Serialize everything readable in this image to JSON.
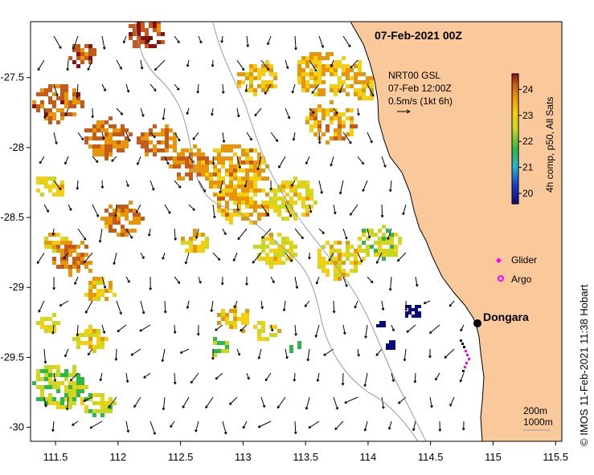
{
  "map": {
    "title": "07-Feb-2021 00Z",
    "credit": "© IMOS 11-Feb-2021 11:38 Hobart",
    "x_axis": {
      "ticks": [
        "111.5",
        "112",
        "112.5",
        "113",
        "113.5",
        "114",
        "114.5",
        "115",
        "115.5"
      ],
      "values": [
        111.5,
        112,
        112.5,
        113,
        113.5,
        114,
        114.5,
        115,
        115.5
      ],
      "range": [
        111.3,
        115.55
      ]
    },
    "y_axis": {
      "ticks": [
        "-27.5",
        "-28",
        "-28.5",
        "-29",
        "-29.5",
        "-30"
      ],
      "values": [
        -27.5,
        -28,
        -28.5,
        -29,
        -29.5,
        -30
      ],
      "range": [
        -30.1,
        -27.1
      ]
    },
    "current_legend": {
      "line1": "NRT00 GSL",
      "line2": "07-Feb 12:00Z",
      "line3": "0.5m/s (1kt 6h)"
    },
    "colorbar": {
      "label": "4h comp, p50, All Sats",
      "ticks": [
        "24",
        "23",
        "22",
        "21",
        "20"
      ],
      "values": [
        24,
        23,
        22,
        21,
        20
      ],
      "range": [
        19.6,
        24.6
      ]
    },
    "markers": {
      "glider": "Glider",
      "argo": "Argo"
    },
    "place": {
      "name": "Dongara",
      "lon": 114.93,
      "lat": -29.25
    },
    "depth_legend": {
      "line1": "200m",
      "line2": "1000m"
    },
    "colors": {
      "land": "#f9c89b",
      "sea": "#ffffff",
      "glider": "#ff00ff",
      "argo": "#ff00ff"
    }
  }
}
